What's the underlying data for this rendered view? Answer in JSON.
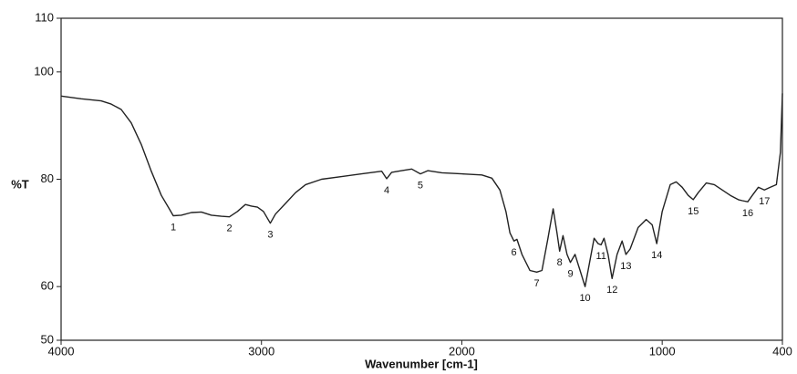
{
  "chart_data": {
    "type": "line",
    "x_label": "Wavenumber [cm-1]",
    "y_label": "%T",
    "x": [
      4000,
      3900,
      3800,
      3750,
      3700,
      3650,
      3600,
      3550,
      3500,
      3460,
      3440,
      3400,
      3350,
      3300,
      3250,
      3200,
      3160,
      3120,
      3080,
      3050,
      3020,
      2990,
      2956,
      2930,
      2880,
      2830,
      2780,
      2700,
      2600,
      2500,
      2400,
      2375,
      2350,
      2300,
      2250,
      2207,
      2170,
      2100,
      2000,
      1900,
      1850,
      1810,
      1780,
      1760,
      1740,
      1725,
      1700,
      1660,
      1626,
      1600,
      1570,
      1544,
      1525,
      1512,
      1495,
      1475,
      1458,
      1435,
      1410,
      1385,
      1360,
      1340,
      1320,
      1305,
      1290,
      1270,
      1250,
      1225,
      1200,
      1181,
      1160,
      1120,
      1080,
      1050,
      1027,
      1000,
      960,
      930,
      900,
      870,
      845,
      820,
      780,
      740,
      700,
      660,
      620,
      600,
      573,
      550,
      520,
      490,
      460,
      430,
      410,
      400
    ],
    "values": [
      95.5,
      95,
      94.6,
      94,
      93,
      90.5,
      86.5,
      81.5,
      77,
      74.5,
      73.2,
      73.3,
      73.8,
      73.9,
      73.3,
      73.1,
      73,
      74,
      75.3,
      75,
      74.8,
      74,
      71.8,
      73.5,
      75.5,
      77.5,
      79,
      80,
      80.5,
      81,
      81.5,
      80.1,
      81.3,
      81.6,
      81.9,
      81,
      81.6,
      81.2,
      81,
      80.8,
      80.2,
      78,
      74,
      70,
      68.5,
      68.8,
      66,
      63,
      62.7,
      63,
      69,
      74.5,
      70,
      66.6,
      69.5,
      66,
      64.5,
      66,
      63,
      60,
      65,
      69,
      68,
      67.8,
      69,
      66,
      61.5,
      66,
      68.5,
      66,
      67,
      71,
      72.5,
      71.5,
      68,
      74,
      79,
      79.5,
      78.5,
      77,
      76.2,
      77.5,
      79.3,
      79,
      78,
      77,
      76.2,
      76,
      75.8,
      77,
      78.5,
      78,
      78.5,
      79,
      85,
      96
    ],
    "color": "#222222",
    "xlim": [
      4000,
      400
    ],
    "xticks": [
      4000,
      3000,
      2000,
      1000,
      400
    ],
    "ylim": [
      50,
      110
    ],
    "yticks": [
      50,
      60,
      80,
      100,
      110
    ],
    "peaks": [
      {
        "label": "1",
        "x": 3440,
        "y": 73.2
      },
      {
        "label": "2",
        "x": 3160,
        "y": 73
      },
      {
        "label": "3",
        "x": 2956,
        "y": 71.8
      },
      {
        "label": "4",
        "x": 2375,
        "y": 80.1
      },
      {
        "label": "5",
        "x": 2207,
        "y": 81
      },
      {
        "label": "6",
        "x": 1740,
        "y": 68.5
      },
      {
        "label": "7",
        "x": 1626,
        "y": 62.7
      },
      {
        "label": "8",
        "x": 1512,
        "y": 66.6
      },
      {
        "label": "9",
        "x": 1458,
        "y": 64.5
      },
      {
        "label": "10",
        "x": 1385,
        "y": 60
      },
      {
        "label": "11",
        "x": 1305,
        "y": 67.8
      },
      {
        "label": "12",
        "x": 1250,
        "y": 61.5
      },
      {
        "label": "13",
        "x": 1181,
        "y": 66
      },
      {
        "label": "14",
        "x": 1027,
        "y": 68
      },
      {
        "label": "15",
        "x": 845,
        "y": 76.2
      },
      {
        "label": "16",
        "x": 573,
        "y": 75.8
      },
      {
        "label": "17",
        "x": 490,
        "y": 78
      }
    ]
  }
}
